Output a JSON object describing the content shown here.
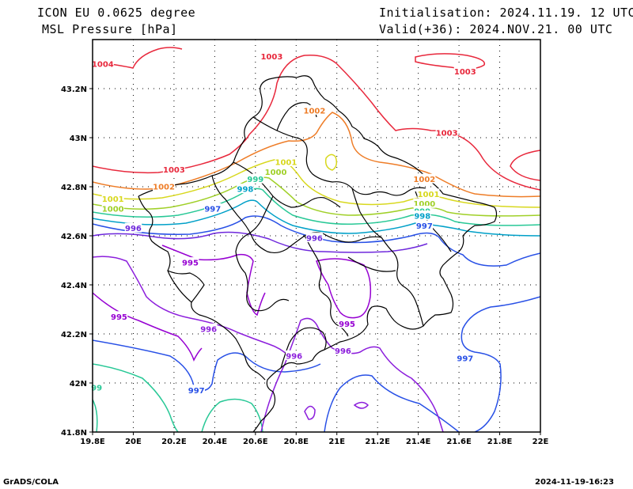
{
  "header": {
    "model": "ICON EU 0.0625 degree",
    "field": "MSL Pressure [hPa]",
    "init": "Initialisation: 2024.11.19. 12 UTC",
    "valid": "Valid(+36): 2024.NOV.21. 00 UTC"
  },
  "footer": {
    "left": "GrADS/COLA",
    "right": "2024-11-19-16:23"
  },
  "map": {
    "lon_range": [
      19.8,
      22.0
    ],
    "lat_range": [
      41.8,
      43.4
    ],
    "x_ticks": [
      "19.8E",
      "20E",
      "20.2E",
      "20.4E",
      "20.6E",
      "20.8E",
      "21E",
      "21.2E",
      "21.4E",
      "21.6E",
      "21.8E",
      "22E"
    ],
    "y_ticks": [
      "41.8N",
      "42N",
      "42.2N",
      "42.4N",
      "42.6N",
      "42.8N",
      "43N",
      "43.2N"
    ],
    "grid": true,
    "contour_interval_hPa": 1
  },
  "contour_labels": [
    {
      "text": "1004",
      "lon": 19.85,
      "lat": 43.3,
      "color": "#e8283c"
    },
    {
      "text": "1003",
      "lon": 20.68,
      "lat": 43.33,
      "color": "#e8283c"
    },
    {
      "text": "1003",
      "lon": 21.63,
      "lat": 43.27,
      "color": "#e8283c"
    },
    {
      "text": "1003",
      "lon": 21.54,
      "lat": 43.02,
      "color": "#e8283c"
    },
    {
      "text": "1003",
      "lon": 20.2,
      "lat": 42.87,
      "color": "#e8283c"
    },
    {
      "text": "1002",
      "lon": 20.89,
      "lat": 43.11,
      "color": "#ee7d28"
    },
    {
      "text": "1002",
      "lon": 21.43,
      "lat": 42.83,
      "color": "#ee7d28"
    },
    {
      "text": "1002",
      "lon": 20.15,
      "lat": 42.8,
      "color": "#ee7d28"
    },
    {
      "text": "1001",
      "lon": 20.75,
      "lat": 42.9,
      "color": "#d8d81e"
    },
    {
      "text": "1000",
      "lon": 20.7,
      "lat": 42.86,
      "color": "#a0d028"
    },
    {
      "text": "1001",
      "lon": 19.9,
      "lat": 42.75,
      "color": "#d8d81e"
    },
    {
      "text": "1000",
      "lon": 19.9,
      "lat": 42.71,
      "color": "#a0d028"
    },
    {
      "text": "1001",
      "lon": 21.45,
      "lat": 42.77,
      "color": "#d8d81e"
    },
    {
      "text": "1000",
      "lon": 21.43,
      "lat": 42.73,
      "color": "#a0d028"
    },
    {
      "text": "999",
      "lon": 20.6,
      "lat": 42.83,
      "color": "#28c896"
    },
    {
      "text": "998",
      "lon": 20.55,
      "lat": 42.79,
      "color": "#00a0c8"
    },
    {
      "text": "999",
      "lon": 21.42,
      "lat": 42.7,
      "color": "#28c896"
    },
    {
      "text": "998",
      "lon": 21.42,
      "lat": 42.68,
      "color": "#00a0c8"
    },
    {
      "text": "997",
      "lon": 20.39,
      "lat": 42.71,
      "color": "#2850e6"
    },
    {
      "text": "997",
      "lon": 21.43,
      "lat": 42.64,
      "color": "#2850e6"
    },
    {
      "text": "997",
      "lon": 21.63,
      "lat": 42.1,
      "color": "#2850e6"
    },
    {
      "text": "997",
      "lon": 20.31,
      "lat": 41.97,
      "color": "#2850e6"
    },
    {
      "text": "99",
      "lon": 19.82,
      "lat": 41.98,
      "color": "#28c896"
    },
    {
      "text": "996",
      "lon": 20.0,
      "lat": 42.63,
      "color": "#6e28dc"
    },
    {
      "text": "996",
      "lon": 20.89,
      "lat": 42.59,
      "color": "#6e28dc"
    },
    {
      "text": "996",
      "lon": 20.37,
      "lat": 42.22,
      "color": "#8c1edc"
    },
    {
      "text": "996",
      "lon": 20.79,
      "lat": 42.11,
      "color": "#8c1edc"
    },
    {
      "text": "996",
      "lon": 21.03,
      "lat": 42.13,
      "color": "#8c1edc"
    },
    {
      "text": "995",
      "lon": 20.28,
      "lat": 42.49,
      "color": "#9600d2"
    },
    {
      "text": "995",
      "lon": 19.93,
      "lat": 42.27,
      "color": "#9600d2"
    },
    {
      "text": "995",
      "lon": 21.05,
      "lat": 42.24,
      "color": "#9600d2"
    }
  ]
}
